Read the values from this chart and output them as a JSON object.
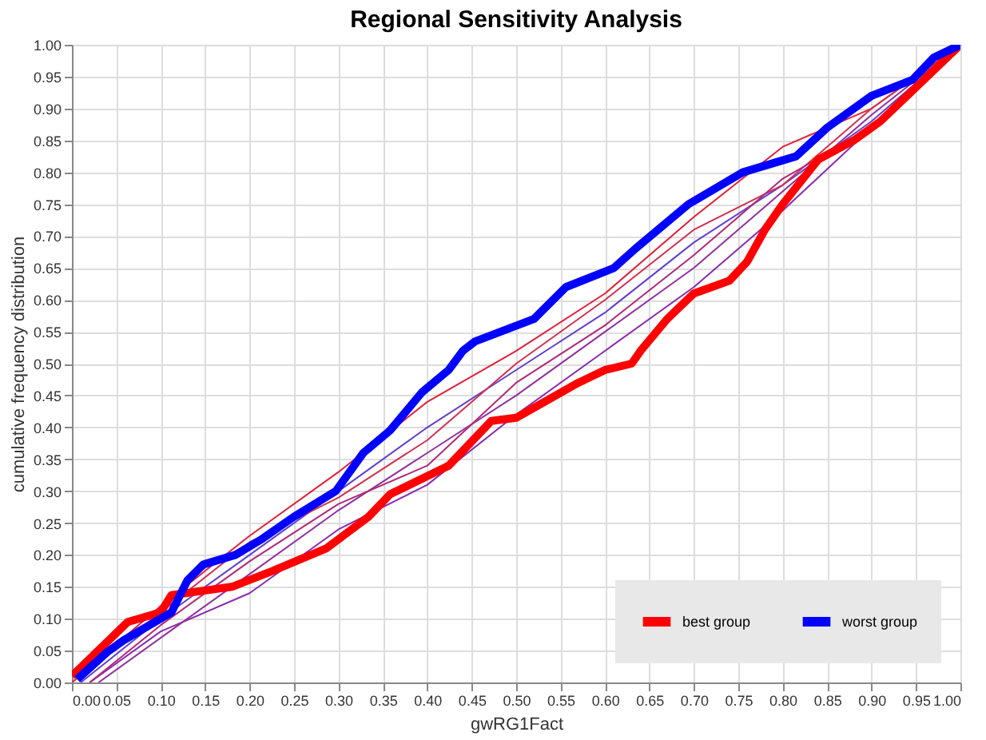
{
  "chart_data": {
    "type": "line",
    "title": "Regional Sensitivity Analysis",
    "xlabel": "gwRG1Fact",
    "ylabel": "cumulative frequency distribution",
    "xlim": [
      0,
      1
    ],
    "ylim": [
      0,
      1
    ],
    "xticks": [
      {
        "value": 0,
        "label": "0.00"
      },
      {
        "value": 0.05,
        "label": "0.05"
      },
      {
        "value": 0.1,
        "label": "0.10"
      },
      {
        "value": 0.15,
        "label": "0.15"
      },
      {
        "value": 0.2,
        "label": "0.20"
      },
      {
        "value": 0.25,
        "label": "0.25"
      },
      {
        "value": 0.3,
        "label": "0.30"
      },
      {
        "value": 0.35,
        "label": "0.35"
      },
      {
        "value": 0.4,
        "label": "0.40"
      },
      {
        "value": 0.45,
        "label": "0.45"
      },
      {
        "value": 0.5,
        "label": "0.50"
      },
      {
        "value": 0.55,
        "label": "0.55"
      },
      {
        "value": 0.6,
        "label": "0.60"
      },
      {
        "value": 0.65,
        "label": "0.65"
      },
      {
        "value": 0.7,
        "label": "0.70"
      },
      {
        "value": 0.75,
        "label": "0.75"
      },
      {
        "value": 0.8,
        "label": "0.80"
      },
      {
        "value": 0.85,
        "label": "0.85"
      },
      {
        "value": 0.9,
        "label": "0.90"
      },
      {
        "value": 0.95,
        "label": "0.95"
      },
      {
        "value": 1,
        "label": "1.00"
      }
    ],
    "yticks": [
      {
        "value": 0,
        "label": "0.00"
      },
      {
        "value": 0.05,
        "label": "0.05"
      },
      {
        "value": 0.1,
        "label": "0.10"
      },
      {
        "value": 0.15,
        "label": "0.15"
      },
      {
        "value": 0.2,
        "label": "0.20"
      },
      {
        "value": 0.25,
        "label": "0.25"
      },
      {
        "value": 0.3,
        "label": "0.30"
      },
      {
        "value": 0.35,
        "label": "0.35"
      },
      {
        "value": 0.4,
        "label": "0.40"
      },
      {
        "value": 0.45,
        "label": "0.45"
      },
      {
        "value": 0.5,
        "label": "0.50"
      },
      {
        "value": 0.55,
        "label": "0.55"
      },
      {
        "value": 0.6,
        "label": "0.60"
      },
      {
        "value": 0.65,
        "label": "0.65"
      },
      {
        "value": 0.7,
        "label": "0.70"
      },
      {
        "value": 0.75,
        "label": "0.75"
      },
      {
        "value": 0.8,
        "label": "0.80"
      },
      {
        "value": 0.85,
        "label": "0.85"
      },
      {
        "value": 0.9,
        "label": "0.90"
      },
      {
        "value": 0.95,
        "label": "0.95"
      },
      {
        "value": 1,
        "label": "1.00"
      }
    ],
    "grid": true,
    "legend": "bottom right",
    "marker": "none",
    "series": [
      {
        "color": "#e0203a",
        "x": [
          0,
          0.1,
          0.2,
          0.3,
          0.4,
          0.5,
          0.6,
          0.7,
          0.8,
          0.9,
          1
        ],
        "values": [
          0,
          0.12,
          0.23,
          0.33,
          0.44,
          0.52,
          0.61,
          0.73,
          0.84,
          0.9,
          1
        ]
      },
      {
        "color": "#8a2ab0",
        "x": [
          0.02,
          0.1,
          0.2,
          0.3,
          0.4,
          0.5,
          0.6,
          0.7,
          0.8,
          0.9,
          1
        ],
        "values": [
          0,
          0.08,
          0.14,
          0.24,
          0.31,
          0.42,
          0.52,
          0.62,
          0.74,
          0.87,
          1
        ]
      },
      {
        "color": "#6040d0",
        "x": [
          0.01,
          0.1,
          0.2,
          0.3,
          0.4,
          0.5,
          0.6,
          0.7,
          0.8,
          0.9,
          1
        ],
        "values": [
          0,
          0.1,
          0.2,
          0.3,
          0.4,
          0.49,
          0.58,
          0.69,
          0.78,
          0.88,
          1
        ]
      },
      {
        "color": "#9030a0",
        "x": [
          0.03,
          0.12,
          0.2,
          0.3,
          0.4,
          0.5,
          0.6,
          0.7,
          0.8,
          0.9,
          1
        ],
        "values": [
          0,
          0.09,
          0.17,
          0.27,
          0.36,
          0.45,
          0.55,
          0.65,
          0.77,
          0.89,
          1
        ]
      },
      {
        "color": "#d03050",
        "x": [
          0,
          0.1,
          0.2,
          0.3,
          0.4,
          0.5,
          0.6,
          0.7,
          0.8,
          0.9,
          1
        ],
        "values": [
          0,
          0.11,
          0.22,
          0.29,
          0.38,
          0.5,
          0.6,
          0.71,
          0.78,
          0.9,
          1
        ]
      },
      {
        "color": "#b02878",
        "x": [
          0.02,
          0.1,
          0.2,
          0.3,
          0.4,
          0.5,
          0.6,
          0.7,
          0.8,
          0.9,
          1
        ],
        "values": [
          0,
          0.09,
          0.19,
          0.28,
          0.34,
          0.47,
          0.56,
          0.67,
          0.79,
          0.87,
          1
        ]
      },
      {
        "name": "best group",
        "color": "#ff0000",
        "x": [
          0,
          0.063,
          0.1,
          0.112,
          0.18,
          0.226,
          0.286,
          0.334,
          0.358,
          0.424,
          0.472,
          0.5,
          0.57,
          0.6,
          0.63,
          0.64,
          0.67,
          0.7,
          0.74,
          0.76,
          0.78,
          0.8,
          0.84,
          0.88,
          0.91,
          0.94,
          0.97,
          1
        ],
        "values": [
          0.01,
          0.095,
          0.11,
          0.137,
          0.15,
          0.175,
          0.21,
          0.26,
          0.295,
          0.34,
          0.41,
          0.415,
          0.47,
          0.49,
          0.5,
          0.52,
          0.57,
          0.61,
          0.63,
          0.66,
          0.71,
          0.75,
          0.82,
          0.85,
          0.88,
          0.92,
          0.96,
          1
        ]
      },
      {
        "name": "worst group",
        "color": "#0000ff",
        "x": [
          0.006,
          0.04,
          0.058,
          0.112,
          0.13,
          0.148,
          0.184,
          0.214,
          0.25,
          0.297,
          0.328,
          0.358,
          0.394,
          0.424,
          0.44,
          0.454,
          0.52,
          0.556,
          0.61,
          0.634,
          0.694,
          0.755,
          0.815,
          0.85,
          0.9,
          0.946,
          0.97,
          1
        ],
        "values": [
          0.005,
          0.048,
          0.066,
          0.11,
          0.16,
          0.185,
          0.2,
          0.225,
          0.26,
          0.3,
          0.36,
          0.395,
          0.455,
          0.49,
          0.52,
          0.535,
          0.57,
          0.62,
          0.65,
          0.68,
          0.75,
          0.8,
          0.825,
          0.87,
          0.92,
          0.945,
          0.98,
          1
        ]
      }
    ]
  }
}
